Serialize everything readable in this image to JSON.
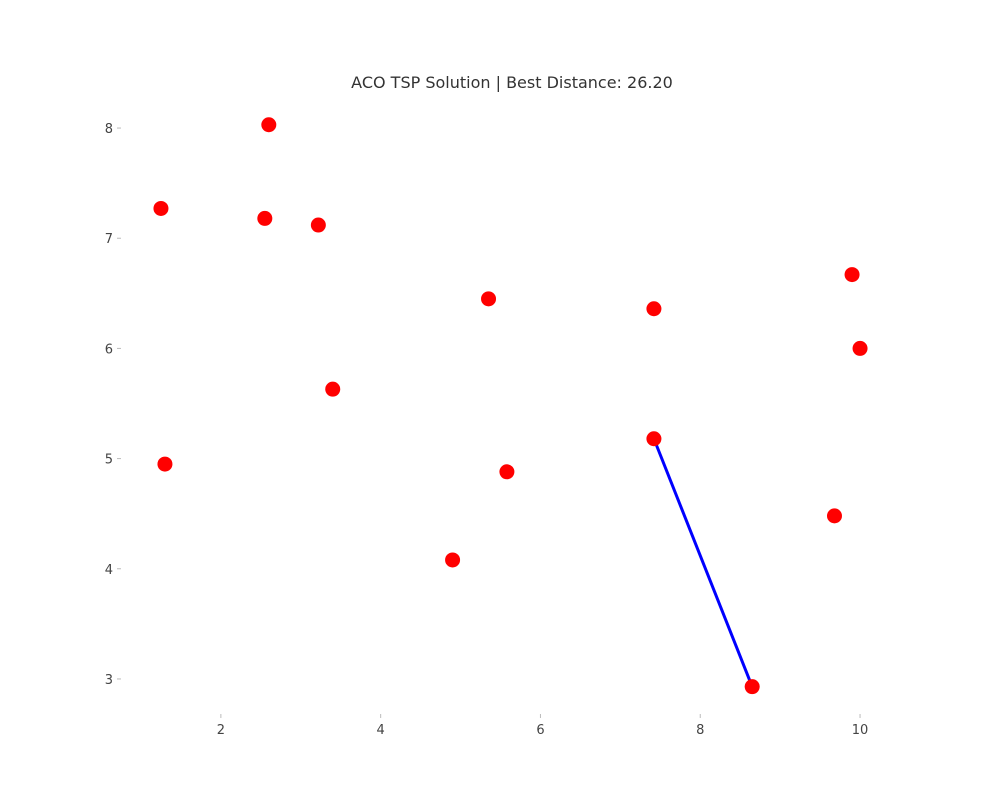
{
  "chart_data": {
    "type": "scatter",
    "title": "ACO TSP Solution | Best Distance: 26.20",
    "xlabel": "",
    "ylabel": "",
    "xlim": [
      0.8,
      10.5
    ],
    "ylim": [
      2.7,
      8.3
    ],
    "x_ticks": [
      2,
      4,
      6,
      8,
      10
    ],
    "y_ticks": [
      3,
      4,
      5,
      6,
      7,
      8
    ],
    "grid": false,
    "legend": "none",
    "colors": {
      "points": "#ff0000",
      "route": "#0000ff"
    },
    "points": [
      {
        "x": 2.6,
        "y": 8.03
      },
      {
        "x": 1.25,
        "y": 7.27
      },
      {
        "x": 2.55,
        "y": 7.18
      },
      {
        "x": 3.22,
        "y": 7.12
      },
      {
        "x": 5.35,
        "y": 6.45
      },
      {
        "x": 7.42,
        "y": 6.36
      },
      {
        "x": 9.9,
        "y": 6.67
      },
      {
        "x": 10.0,
        "y": 6.0
      },
      {
        "x": 3.4,
        "y": 5.63
      },
      {
        "x": 1.3,
        "y": 4.95
      },
      {
        "x": 7.42,
        "y": 5.18
      },
      {
        "x": 5.58,
        "y": 4.88
      },
      {
        "x": 9.68,
        "y": 4.48
      },
      {
        "x": 4.9,
        "y": 4.08
      },
      {
        "x": 8.65,
        "y": 2.93
      }
    ],
    "route": [
      {
        "x": 7.42,
        "y": 5.18
      },
      {
        "x": 8.65,
        "y": 2.93
      }
    ]
  }
}
